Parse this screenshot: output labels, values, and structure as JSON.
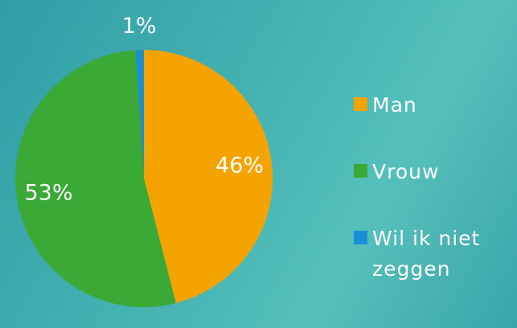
{
  "chart_data": {
    "type": "pie",
    "categories": [
      "Man",
      "Vrouw",
      "Wil ik niet zeggen"
    ],
    "values": [
      46,
      53,
      1
    ],
    "value_labels": [
      "46%",
      "53%",
      "1%"
    ],
    "colors": [
      "#f5a300",
      "#3aa935",
      "#1a8fd6"
    ]
  }
}
